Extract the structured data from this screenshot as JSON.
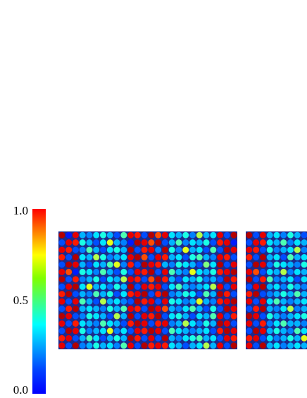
{
  "chart_data": {
    "type": "heatmap",
    "colormap": "jet",
    "colorbar": {
      "ylim": [
        0,
        1
      ],
      "yticks": [
        {
          "value": 0,
          "label": "0.0"
        },
        {
          "value": 0.5,
          "label": "0.5"
        },
        {
          "value": 1,
          "label": "1.0"
        }
      ]
    },
    "panels": [
      {
        "values": [
          [
            0.95,
            0.15,
            0.9,
            0.3,
            0.25,
            0.35,
            0.4,
            0.3,
            0.2,
            0.45,
            0.9,
            0.85,
            0.2,
            0.95,
            0.8,
            0.9,
            0.35,
            0.3,
            0.4,
            0.25,
            0.55,
            0.3,
            0.35,
            0.9,
            0.2,
            0.95
          ],
          [
            0.2,
            0.9,
            0.85,
            0.4,
            0.3,
            0.2,
            0.35,
            0.6,
            0.3,
            0.25,
            0.15,
            0.95,
            0.9,
            0.8,
            0.95,
            0.2,
            0.3,
            0.45,
            0.25,
            0.35,
            0.3,
            0.4,
            0.2,
            0.85,
            0.9,
            0.15
          ],
          [
            0.9,
            0.85,
            0.2,
            0.25,
            0.45,
            0.3,
            0.2,
            0.35,
            0.4,
            0.3,
            0.95,
            0.2,
            0.85,
            0.9,
            0.25,
            0.95,
            0.4,
            0.25,
            0.6,
            0.3,
            0.35,
            0.2,
            0.45,
            0.2,
            0.95,
            0.9
          ],
          [
            0.85,
            0.2,
            0.95,
            0.35,
            0.3,
            0.55,
            0.4,
            0.25,
            0.3,
            0.35,
            0.9,
            0.95,
            0.8,
            0.2,
            0.9,
            0.85,
            0.3,
            0.35,
            0.2,
            0.4,
            0.45,
            0.3,
            0.25,
            0.9,
            0.85,
            0.2
          ],
          [
            0.2,
            0.95,
            0.9,
            0.3,
            0.2,
            0.35,
            0.3,
            0.45,
            0.6,
            0.25,
            0.85,
            0.2,
            0.95,
            0.9,
            0.85,
            0.3,
            0.25,
            0.4,
            0.35,
            0.3,
            0.2,
            0.5,
            0.35,
            0.95,
            0.2,
            0.9
          ],
          [
            0.9,
            0.8,
            0.15,
            0.4,
            0.35,
            0.25,
            0.45,
            0.3,
            0.2,
            0.4,
            0.2,
            0.9,
            0.85,
            0.95,
            0.2,
            0.9,
            0.45,
            0.3,
            0.25,
            0.6,
            0.35,
            0.3,
            0.4,
            0.85,
            0.9,
            0.95
          ],
          [
            0.95,
            0.2,
            0.85,
            0.25,
            0.3,
            0.4,
            0.2,
            0.35,
            0.3,
            0.55,
            0.9,
            0.85,
            0.2,
            0.8,
            0.95,
            0.85,
            0.3,
            0.2,
            0.35,
            0.3,
            0.4,
            0.25,
            0.3,
            0.2,
            0.95,
            0.85
          ],
          [
            0.2,
            0.9,
            0.95,
            0.35,
            0.6,
            0.3,
            0.35,
            0.25,
            0.4,
            0.3,
            0.95,
            0.2,
            0.9,
            0.85,
            0.9,
            0.2,
            0.35,
            0.45,
            0.3,
            0.25,
            0.3,
            0.35,
            0.55,
            0.9,
            0.2,
            0.9
          ],
          [
            0.85,
            0.95,
            0.2,
            0.3,
            0.25,
            0.45,
            0.3,
            0.4,
            0.2,
            0.35,
            0.85,
            0.9,
            0.95,
            0.2,
            0.85,
            0.95,
            0.25,
            0.3,
            0.4,
            0.35,
            0.2,
            0.45,
            0.3,
            0.95,
            0.85,
            0.2
          ],
          [
            0.9,
            0.2,
            0.9,
            0.45,
            0.3,
            0.2,
            0.55,
            0.3,
            0.35,
            0.25,
            0.2,
            0.95,
            0.85,
            0.9,
            0.2,
            0.9,
            0.4,
            0.35,
            0.25,
            0.3,
            0.6,
            0.3,
            0.25,
            0.85,
            0.9,
            0.95
          ],
          [
            0.2,
            0.85,
            0.95,
            0.3,
            0.35,
            0.3,
            0.25,
            0.4,
            0.3,
            0.45,
            0.9,
            0.85,
            0.2,
            0.95,
            0.9,
            0.8,
            0.3,
            0.25,
            0.35,
            0.45,
            0.3,
            0.2,
            0.4,
            0.2,
            0.95,
            0.9
          ],
          [
            0.95,
            0.9,
            0.2,
            0.25,
            0.4,
            0.35,
            0.3,
            0.2,
            0.55,
            0.3,
            0.95,
            0.2,
            0.9,
            0.85,
            0.95,
            0.2,
            0.35,
            0.4,
            0.3,
            0.2,
            0.35,
            0.3,
            0.45,
            0.9,
            0.2,
            0.85
          ],
          [
            0.9,
            0.2,
            0.85,
            0.35,
            0.3,
            0.25,
            0.45,
            0.35,
            0.3,
            0.2,
            0.85,
            0.95,
            0.9,
            0.2,
            0.85,
            0.9,
            0.25,
            0.3,
            0.55,
            0.35,
            0.25,
            0.4,
            0.3,
            0.95,
            0.9,
            0.2
          ],
          [
            0.2,
            0.95,
            0.9,
            0.4,
            0.25,
            0.3,
            0.35,
            0.6,
            0.25,
            0.35,
            0.2,
            0.9,
            0.85,
            0.95,
            0.9,
            0.2,
            0.45,
            0.35,
            0.3,
            0.25,
            0.3,
            0.35,
            0.2,
            0.85,
            0.95,
            0.9
          ],
          [
            0.85,
            0.9,
            0.2,
            0.3,
            0.45,
            0.35,
            0.2,
            0.3,
            0.4,
            0.3,
            0.95,
            0.85,
            0.2,
            0.9,
            0.2,
            0.95,
            0.3,
            0.25,
            0.35,
            0.4,
            0.45,
            0.3,
            0.35,
            0.2,
            0.9,
            0.85
          ],
          [
            0.9,
            0.2,
            0.95,
            0.25,
            0.3,
            0.4,
            0.3,
            0.35,
            0.25,
            0.45,
            0.9,
            0.2,
            0.95,
            0.85,
            0.9,
            0.85,
            0.35,
            0.3,
            0.2,
            0.3,
            0.35,
            0.55,
            0.3,
            0.9,
            0.2,
            0.95
          ]
        ]
      },
      {
        "values": [
          [
            0.95,
            0.2,
            0.9,
            0.3,
            0.35,
            0.25,
            0.4,
            0.3,
            0.2
          ],
          [
            0.2,
            0.9,
            0.85,
            0.35,
            0.3,
            0.45,
            0.25,
            0.35,
            0.3
          ],
          [
            0.9,
            0.85,
            0.2,
            0.4,
            0.25,
            0.3,
            0.35,
            0.55,
            0.25
          ],
          [
            0.85,
            0.2,
            0.95,
            0.3,
            0.35,
            0.2,
            0.45,
            0.3,
            0.35
          ],
          [
            0.2,
            0.95,
            0.9,
            0.25,
            0.4,
            0.35,
            0.3,
            0.25,
            0.4
          ],
          [
            0.9,
            0.8,
            0.2,
            0.35,
            0.3,
            0.55,
            0.25,
            0.35,
            0.3
          ],
          [
            0.95,
            0.2,
            0.85,
            0.45,
            0.25,
            0.3,
            0.35,
            0.2,
            0.35
          ],
          [
            0.2,
            0.9,
            0.95,
            0.3,
            0.35,
            0.25,
            0.4,
            0.3,
            0.25
          ],
          [
            0.85,
            0.95,
            0.2,
            0.25,
            0.3,
            0.4,
            0.3,
            0.45,
            0.3
          ],
          [
            0.9,
            0.2,
            0.9,
            0.35,
            0.45,
            0.3,
            0.25,
            0.3,
            0.35
          ],
          [
            0.2,
            0.85,
            0.95,
            0.3,
            0.25,
            0.35,
            0.55,
            0.25,
            0.3
          ],
          [
            0.95,
            0.9,
            0.2,
            0.4,
            0.3,
            0.25,
            0.3,
            0.35,
            0.4
          ],
          [
            0.9,
            0.2,
            0.85,
            0.25,
            0.35,
            0.45,
            0.3,
            0.3,
            0.25
          ],
          [
            0.2,
            0.95,
            0.9,
            0.3,
            0.4,
            0.3,
            0.25,
            0.45,
            0.35
          ],
          [
            0.85,
            0.9,
            0.2,
            0.35,
            0.25,
            0.3,
            0.4,
            0.3,
            0.6
          ],
          [
            0.9,
            0.2,
            0.95,
            0.3,
            0.35,
            0.25,
            0.3,
            0.35,
            0.3
          ]
        ]
      }
    ]
  }
}
